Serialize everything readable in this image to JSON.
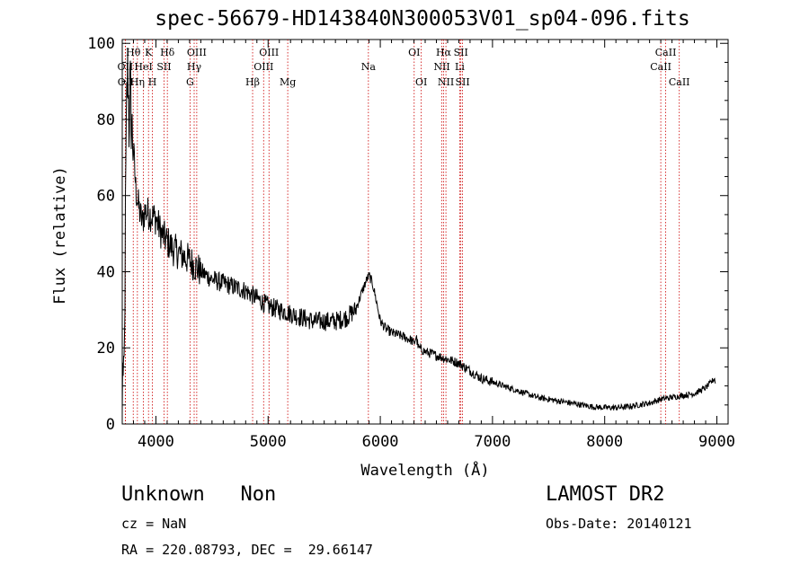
{
  "header": {
    "title": "spec-56679-HD143840N300053V01_sp04-096.fits"
  },
  "footer": {
    "object_line": "Unknown   Non",
    "survey": "LAMOST DR2",
    "redshift": "cz = NaN",
    "obs_date": "Obs-Date: 20140121",
    "coords": "RA = 220.08793, DEC =  29.66147"
  },
  "chart_data": {
    "type": "line",
    "xlabel": "Wavelength (Å)",
    "ylabel": "Flux (relative)",
    "xlim": [
      3700,
      9100
    ],
    "ylim": [
      0,
      101
    ],
    "xticks": [
      4000,
      5000,
      6000,
      7000,
      8000,
      9000
    ],
    "yticks": [
      0,
      20,
      40,
      60,
      80,
      100
    ],
    "line_color": "#000000",
    "marker_color": "#cc0000",
    "grid": false,
    "spectrum_anchors": [
      [
        3700,
        0
      ],
      [
        3702,
        25
      ],
      [
        3710,
        5
      ],
      [
        3720,
        20
      ],
      [
        3730,
        60
      ],
      [
        3740,
        85
      ],
      [
        3750,
        95
      ],
      [
        3760,
        78
      ],
      [
        3770,
        90
      ],
      [
        3780,
        80
      ],
      [
        3800,
        72
      ],
      [
        3820,
        62
      ],
      [
        3840,
        58
      ],
      [
        3860,
        55
      ],
      [
        3880,
        53
      ],
      [
        3900,
        56
      ],
      [
        3950,
        55
      ],
      [
        4000,
        54
      ],
      [
        4050,
        50
      ],
      [
        4100,
        48
      ],
      [
        4150,
        46
      ],
      [
        4200,
        45
      ],
      [
        4300,
        43
      ],
      [
        4400,
        40
      ],
      [
        4500,
        38
      ],
      [
        4600,
        37
      ],
      [
        4700,
        36
      ],
      [
        4800,
        35
      ],
      [
        4900,
        33
      ],
      [
        5000,
        31
      ],
      [
        5100,
        30
      ],
      [
        5200,
        29
      ],
      [
        5300,
        28
      ],
      [
        5400,
        27
      ],
      [
        5500,
        27
      ],
      [
        5600,
        27
      ],
      [
        5700,
        28
      ],
      [
        5780,
        30
      ],
      [
        5840,
        35
      ],
      [
        5880,
        38
      ],
      [
        5900,
        39
      ],
      [
        5930,
        37
      ],
      [
        5960,
        33
      ],
      [
        6000,
        27
      ],
      [
        6050,
        25
      ],
      [
        6100,
        24
      ],
      [
        6200,
        23
      ],
      [
        6280,
        22
      ],
      [
        6300,
        21
      ],
      [
        6320,
        23
      ],
      [
        6340,
        20
      ],
      [
        6400,
        19
      ],
      [
        6500,
        18
      ],
      [
        6600,
        17
      ],
      [
        6700,
        16
      ],
      [
        6800,
        14
      ],
      [
        6900,
        12
      ],
      [
        7000,
        11
      ],
      [
        7100,
        10
      ],
      [
        7200,
        9
      ],
      [
        7300,
        8
      ],
      [
        7400,
        7
      ],
      [
        7500,
        6.5
      ],
      [
        7600,
        6
      ],
      [
        7700,
        5.5
      ],
      [
        7800,
        5
      ],
      [
        7900,
        4.5
      ],
      [
        8000,
        4.3
      ],
      [
        8100,
        4.3
      ],
      [
        8200,
        4.5
      ],
      [
        8300,
        5
      ],
      [
        8400,
        5.5
      ],
      [
        8500,
        6.5
      ],
      [
        8600,
        7
      ],
      [
        8700,
        7.5
      ],
      [
        8800,
        8
      ],
      [
        8900,
        9.5
      ],
      [
        8950,
        11
      ],
      [
        8980,
        12
      ],
      [
        8990,
        10
      ]
    ],
    "line_markers": [
      {
        "label": "OII",
        "wl": 3727,
        "row": 1
      },
      {
        "label": "OII",
        "wl": 3729,
        "row": 2
      },
      {
        "label": "Hθ",
        "wl": 3798,
        "row": 0
      },
      {
        "label": "Hη",
        "wl": 3835,
        "row": 2
      },
      {
        "label": "HeI",
        "wl": 3889,
        "row": 1
      },
      {
        "label": "K",
        "wl": 3934,
        "row": 0
      },
      {
        "label": "H",
        "wl": 3969,
        "row": 2
      },
      {
        "label": "SII",
        "wl": 4072,
        "row": 1
      },
      {
        "label": "Hδ",
        "wl": 4102,
        "row": 0
      },
      {
        "label": "G",
        "wl": 4304,
        "row": 2
      },
      {
        "label": "Hγ",
        "wl": 4341,
        "row": 1
      },
      {
        "label": "OIII",
        "wl": 4364,
        "row": 0
      },
      {
        "label": "Hβ",
        "wl": 4862,
        "row": 2
      },
      {
        "label": "OIII",
        "wl": 4960,
        "row": 1
      },
      {
        "label": "OIII",
        "wl": 5008,
        "row": 0
      },
      {
        "label": "Mg",
        "wl": 5175,
        "row": 2
      },
      {
        "label": "Na",
        "wl": 5894,
        "row": 1
      },
      {
        "label": "OI",
        "wl": 6302,
        "row": 0
      },
      {
        "label": "OI",
        "wl": 6365,
        "row": 2
      },
      {
        "label": "NII",
        "wl": 6549,
        "row": 1
      },
      {
        "label": "Hα",
        "wl": 6564,
        "row": 0
      },
      {
        "label": "NII",
        "wl": 6585,
        "row": 2
      },
      {
        "label": "Li",
        "wl": 6708,
        "row": 1
      },
      {
        "label": "SII",
        "wl": 6718,
        "row": 0
      },
      {
        "label": "SII",
        "wl": 6733,
        "row": 2
      },
      {
        "label": "CaII",
        "wl": 8500,
        "row": 1
      },
      {
        "label": "CaII",
        "wl": 8544,
        "row": 0
      },
      {
        "label": "CaII",
        "wl": 8665,
        "row": 2
      }
    ]
  }
}
